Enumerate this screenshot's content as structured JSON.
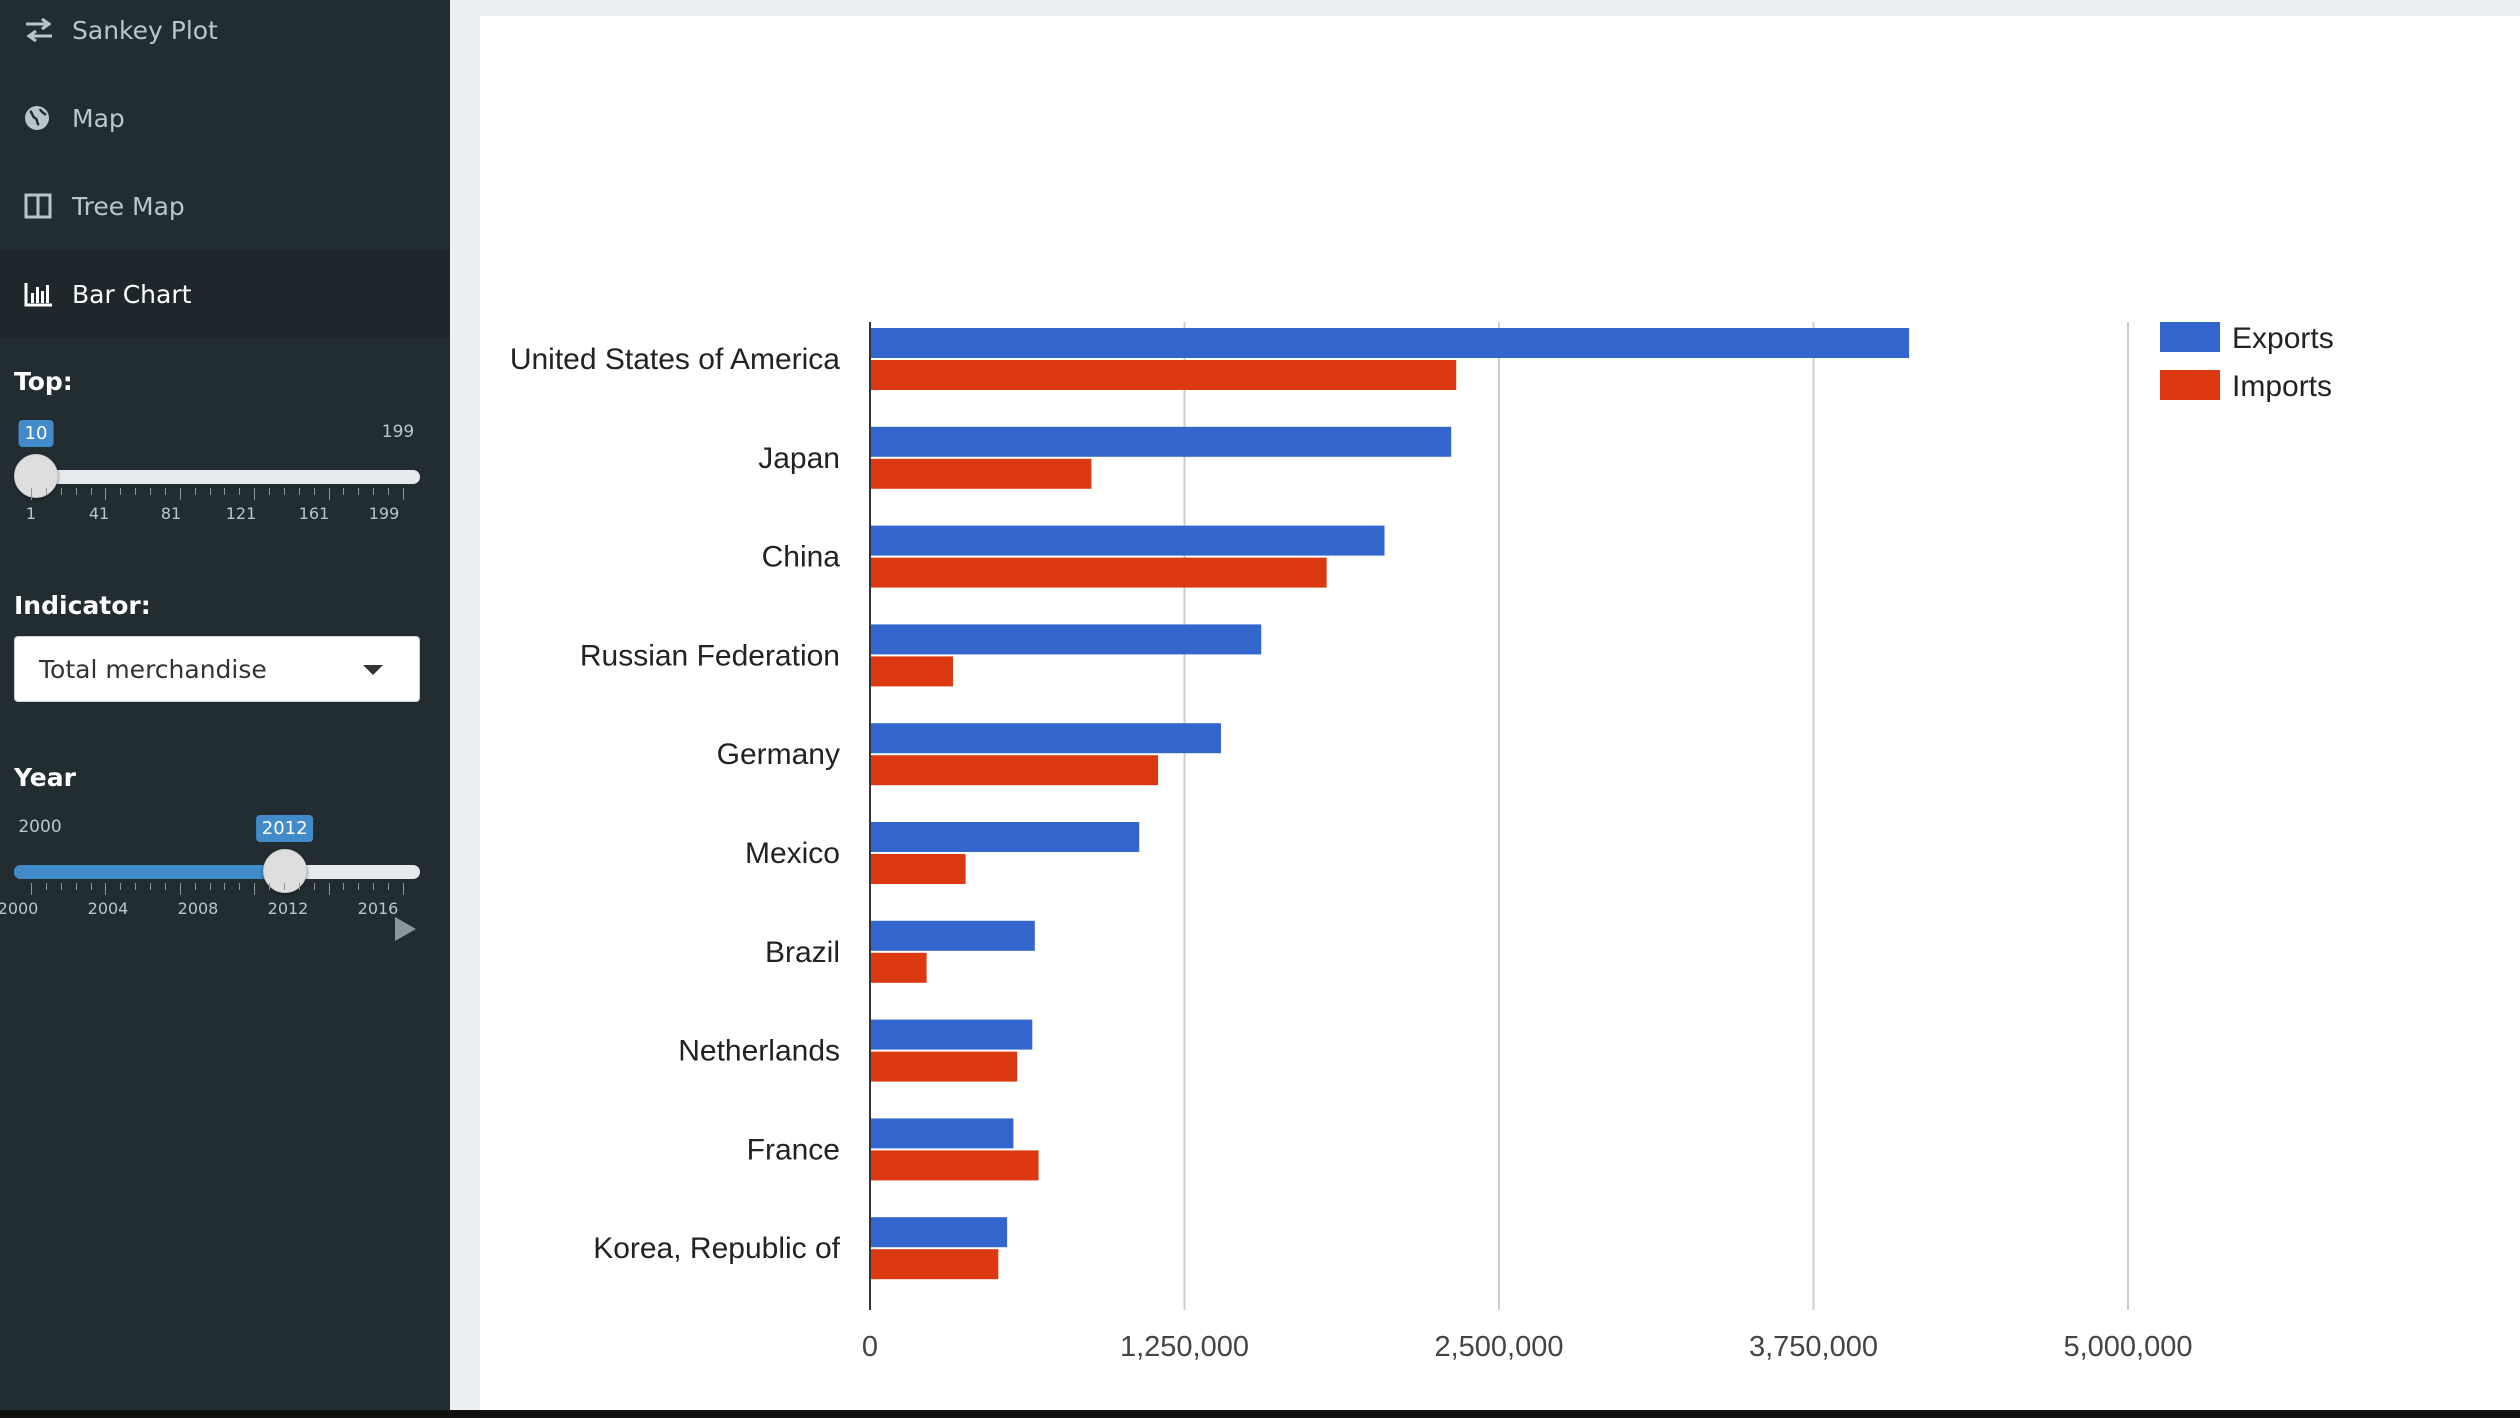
{
  "sidebar": {
    "menu": [
      {
        "label": "Sankey Plot",
        "icon": "exchange-icon"
      },
      {
        "label": "Map",
        "icon": "globe-icon"
      },
      {
        "label": "Tree Map",
        "icon": "columns-icon"
      },
      {
        "label": "Bar Chart",
        "icon": "bar-chart-icon",
        "active": true
      }
    ],
    "top_slider": {
      "label": "Top:",
      "value": 10,
      "min": 1,
      "max": 199,
      "value_text": "10",
      "max_text": "199",
      "tick_labels": [
        "1",
        "41",
        "81",
        "121",
        "161",
        "199"
      ]
    },
    "indicator": {
      "label": "Indicator:",
      "selected": "Total merchandise"
    },
    "year_slider": {
      "label": "Year",
      "value": 2012,
      "min": 2000,
      "max": 2018,
      "value_text": "2012",
      "min_text": "2000",
      "tick_labels": [
        "2000",
        "2004",
        "2008",
        "2012",
        "2016"
      ]
    }
  },
  "chart_data": {
    "type": "bar",
    "orientation": "horizontal",
    "categories": [
      "United States of America",
      "Japan",
      "China",
      "Russian Federation",
      "Germany",
      "Mexico",
      "Brazil",
      "Netherlands",
      "France",
      "Korea, Republic of"
    ],
    "series": [
      {
        "name": "Exports",
        "color": "#3366cc",
        "values": [
          4130000,
          2310000,
          2045000,
          1555000,
          1395000,
          1070000,
          655000,
          645000,
          570000,
          545000
        ]
      },
      {
        "name": "Imports",
        "color": "#dc3912",
        "values": [
          2330000,
          880000,
          1815000,
          330000,
          1145000,
          380000,
          225000,
          585000,
          670000,
          510000
        ]
      }
    ],
    "xlim": [
      0,
      5000000
    ],
    "x_ticks": [
      "0",
      "1,250,000",
      "2,500,000",
      "3,750,000",
      "5,000,000"
    ],
    "x_tick_values": [
      0,
      1250000,
      2500000,
      3750000,
      5000000
    ],
    "legend_position": "right",
    "grid": true
  }
}
